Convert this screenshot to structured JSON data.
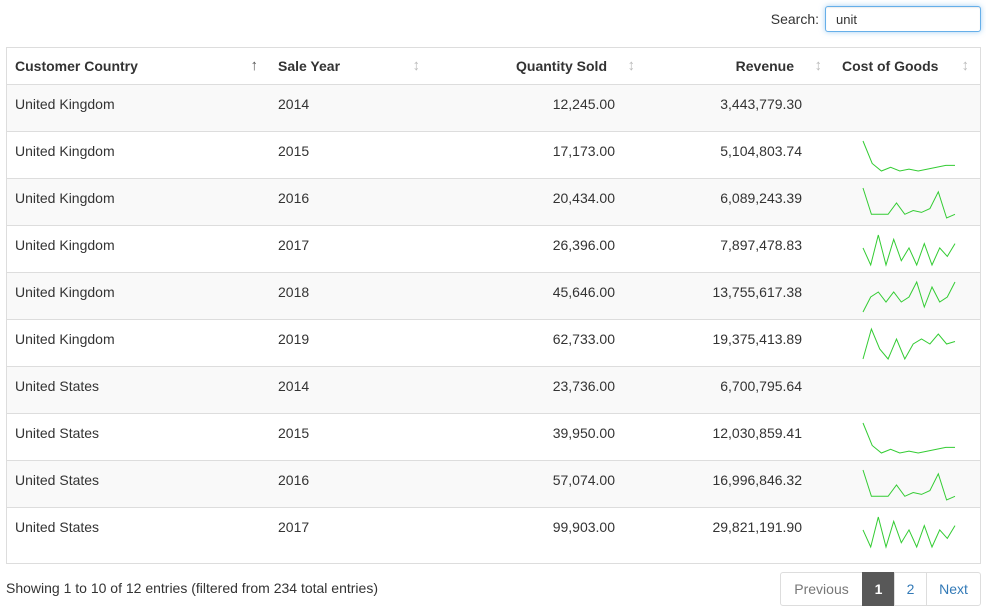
{
  "search": {
    "label": "Search:",
    "value": "unit"
  },
  "table": {
    "columns": [
      {
        "label": "Customer Country",
        "sort": "asc"
      },
      {
        "label": "Sale Year",
        "sort": "none"
      },
      {
        "label": "Quantity Sold",
        "sort": "none"
      },
      {
        "label": "Revenue",
        "sort": "none"
      },
      {
        "label": "Cost of Goods",
        "sort": "none"
      }
    ],
    "rows": [
      {
        "country": "United Kingdom",
        "year": "2014",
        "quantity": "12,245.00",
        "revenue": "3,443,779.30",
        "spark": []
      },
      {
        "country": "United Kingdom",
        "year": "2015",
        "quantity": "17,173.00",
        "revenue": "5,104,803.74",
        "spark": [
          9,
          3,
          1,
          2,
          1,
          1.5,
          1,
          1.5,
          2,
          2.5,
          2.5
        ]
      },
      {
        "country": "United Kingdom",
        "year": "2016",
        "quantity": "20,434.00",
        "revenue": "6,089,243.39",
        "spark": [
          9,
          2,
          2,
          2,
          5,
          2,
          3,
          2.5,
          3.5,
          8,
          1,
          2
        ]
      },
      {
        "country": "United Kingdom",
        "year": "2017",
        "quantity": "26,396.00",
        "revenue": "7,897,478.83",
        "spark": [
          5,
          1,
          8,
          1,
          7,
          2,
          5,
          1,
          6,
          1,
          5,
          3,
          6
        ]
      },
      {
        "country": "United Kingdom",
        "year": "2018",
        "quantity": "45,646.00",
        "revenue": "13,755,617.38",
        "spark": [
          1,
          4,
          5,
          3,
          5,
          3,
          4,
          7,
          2,
          6,
          3,
          4,
          7
        ]
      },
      {
        "country": "United Kingdom",
        "year": "2019",
        "quantity": "62,733.00",
        "revenue": "19,375,413.89",
        "spark": [
          1,
          7,
          3,
          1,
          5,
          1,
          4,
          5,
          4,
          6,
          4,
          4.5
        ]
      },
      {
        "country": "United States",
        "year": "2014",
        "quantity": "23,736.00",
        "revenue": "6,700,795.64",
        "spark": []
      },
      {
        "country": "United States",
        "year": "2015",
        "quantity": "39,950.00",
        "revenue": "12,030,859.41",
        "spark": [
          9,
          3,
          1,
          2,
          1,
          1.5,
          1,
          1.5,
          2,
          2.5,
          2.5
        ]
      },
      {
        "country": "United States",
        "year": "2016",
        "quantity": "57,074.00",
        "revenue": "16,996,846.32",
        "spark": [
          9,
          2,
          2,
          2,
          5,
          2,
          3,
          2.5,
          3.5,
          8,
          1,
          2
        ]
      },
      {
        "country": "United States",
        "year": "2017",
        "quantity": "99,903.00",
        "revenue": "29,821,191.90",
        "spark": [
          5,
          1,
          8,
          1,
          7,
          2,
          5,
          1,
          6,
          1,
          5,
          3,
          6
        ]
      }
    ]
  },
  "footer": {
    "info": "Showing 1 to 10 of 12 entries (filtered from 234 total entries)",
    "pagination": {
      "previous": "Previous",
      "pages": [
        "1",
        "2"
      ],
      "active": "1",
      "next": "Next"
    }
  },
  "colors": {
    "sparkline": "#33cc33",
    "active_page": "#585858",
    "link": "#337ab7"
  },
  "icons": {
    "sort_asc": "sort-ascending-icon",
    "sort_none": "sort-both-icon"
  }
}
